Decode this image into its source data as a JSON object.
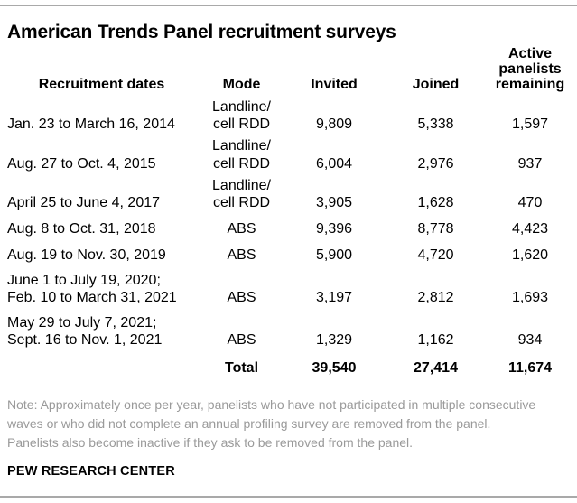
{
  "title": "American Trends Panel recruitment surveys",
  "chart_data": {
    "type": "table",
    "title": "American Trends Panel recruitment surveys",
    "columns": [
      "Recruitment dates",
      "Mode",
      "Invited",
      "Joined",
      "Active\npanelists\nremaining"
    ],
    "rows": [
      {
        "dates": "Jan. 23 to March 16, 2014",
        "mode": "Landline/\ncell RDD",
        "invited": "9,809",
        "joined": "5,338",
        "active": "1,597"
      },
      {
        "dates": "Aug. 27 to Oct. 4, 2015",
        "mode": "Landline/\ncell RDD",
        "invited": "6,004",
        "joined": "2,976",
        "active": "937"
      },
      {
        "dates": "April 25 to June 4, 2017",
        "mode": "Landline/\ncell RDD",
        "invited": "3,905",
        "joined": "1,628",
        "active": "470"
      },
      {
        "dates": "Aug. 8 to Oct. 31, 2018",
        "mode": "ABS",
        "invited": "9,396",
        "joined": "8,778",
        "active": "4,423"
      },
      {
        "dates": "Aug. 19 to Nov. 30, 2019",
        "mode": "ABS",
        "invited": "5,900",
        "joined": "4,720",
        "active": "1,620"
      },
      {
        "dates": "June 1 to July 19, 2020;\nFeb. 10 to March 31, 2021",
        "mode": "ABS",
        "invited": "3,197",
        "joined": "2,812",
        "active": "1,693"
      },
      {
        "dates": "May 29 to July 7, 2021;\nSept. 16 to Nov. 1, 2021",
        "mode": "ABS",
        "invited": "1,329",
        "joined": "1,162",
        "active": "934"
      }
    ],
    "total": {
      "label": "Total",
      "invited": "39,540",
      "joined": "27,414",
      "active": "11,674"
    }
  },
  "note": "Note: Approximately once per year, panelists who have not participated in multiple consecutive waves or who did not complete an annual profiling survey are removed from the panel. Panelists also become inactive if they ask to be removed from the panel.",
  "footer": "PEW RESEARCH CENTER",
  "colors": {
    "rule_gray": "#a9a9a9",
    "note_gray": "#9a9a9a",
    "text": "#000000",
    "background": "#ffffff"
  }
}
